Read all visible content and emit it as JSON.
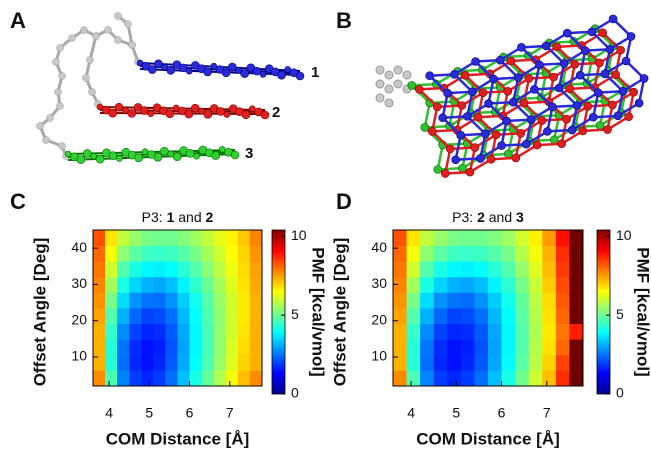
{
  "panel_labels": [
    "A",
    "B",
    "C",
    "D"
  ],
  "molecule_labels": [
    "1",
    "2",
    "3"
  ],
  "chart_data": [
    {
      "type": "heatmap",
      "title": [
        "P3: ",
        "1",
        " and ",
        "2"
      ],
      "x_label": "COM Distance [Å]",
      "y_label": "Offset Angle [Deg]",
      "colorbar_label": "PMF [kcal/vmol]",
      "x": [
        3.75,
        4.05,
        4.35,
        4.65,
        4.95,
        5.25,
        5.55,
        5.85,
        6.15,
        6.45,
        6.75,
        7.05,
        7.35,
        7.65
      ],
      "y": [
        4.15,
        8.45,
        12.75,
        17.05,
        21.35,
        25.65,
        29.95,
        34.25,
        38.55,
        42.85
      ],
      "values": [
        [
          8.5,
          4.5,
          1.8,
          0.8,
          0.5,
          0.8,
          1.5,
          2.6,
          3.8,
          4.8,
          5.8,
          6.8,
          7.8,
          8.5
        ],
        [
          8,
          4,
          1.5,
          0.5,
          0.2,
          0.5,
          1.2,
          2.3,
          3.5,
          4.5,
          5.5,
          6.5,
          7.5,
          8
        ],
        [
          8,
          4,
          1.6,
          0.6,
          0.2,
          0.4,
          1.1,
          2.2,
          3.4,
          4.4,
          5.4,
          6.4,
          7.4,
          8
        ],
        [
          8,
          4.2,
          1.9,
          0.9,
          0.5,
          0.6,
          1.2,
          2.3,
          3.4,
          4.4,
          5.4,
          6.3,
          7.3,
          8
        ],
        [
          8.2,
          4.6,
          2.4,
          1.4,
          0.9,
          1,
          1.5,
          2.5,
          3.5,
          4.5,
          5.4,
          6.3,
          7.2,
          8
        ],
        [
          8.4,
          5.1,
          3,
          2,
          1.6,
          1.5,
          2,
          2.8,
          3.7,
          4.6,
          5.5,
          6.3,
          7.2,
          8
        ],
        [
          8.6,
          5.7,
          3.8,
          2.9,
          2.4,
          2.3,
          2.6,
          3.3,
          4.1,
          4.9,
          5.7,
          6.5,
          7.3,
          8.1
        ],
        [
          8.8,
          6.3,
          4.6,
          3.8,
          3.4,
          3.3,
          3.5,
          4,
          4.6,
          5.3,
          6,
          6.7,
          7.4,
          8.2
        ],
        [
          9,
          6.8,
          5.4,
          4.7,
          4.3,
          4.2,
          4.3,
          4.6,
          5.1,
          5.7,
          6.3,
          6.9,
          7.5,
          8.4
        ],
        [
          9.3,
          7.3,
          6.1,
          5.5,
          5.1,
          5,
          5,
          5.2,
          5.6,
          6.1,
          6.6,
          7.1,
          7.7,
          8.6
        ]
      ],
      "xlim": [
        3.6,
        7.8
      ],
      "ylim": [
        2,
        45
      ],
      "clim": [
        0,
        10.4
      ],
      "xticks": [
        4,
        5,
        6,
        7
      ],
      "yticks": [
        10,
        20,
        30,
        40
      ],
      "cticks": [
        0,
        5,
        10
      ]
    },
    {
      "type": "heatmap",
      "title": [
        "P3: ",
        "2",
        " and ",
        "3"
      ],
      "x_label": "COM Distance [Å]",
      "y_label": "Offset Angle [Deg]",
      "colorbar_label": "PMF [kcal/vmol]",
      "x": [
        3.75,
        4.05,
        4.35,
        4.65,
        4.95,
        5.25,
        5.55,
        5.85,
        6.15,
        6.45,
        6.75,
        7.05,
        7.35,
        7.65
      ],
      "y": [
        4.15,
        8.45,
        12.75,
        17.05,
        21.35,
        25.65,
        29.95,
        34.25,
        38.55,
        42.85
      ],
      "values": [
        [
          8.5,
          4.5,
          1.8,
          0.8,
          0.5,
          0.8,
          1.5,
          2.6,
          3.8,
          5,
          6.3,
          7.8,
          9.8,
          11.5
        ],
        [
          8,
          4,
          1.5,
          0.5,
          0.2,
          0.5,
          1.2,
          2.3,
          3.5,
          4.7,
          6,
          7.5,
          9.5,
          11.2
        ],
        [
          8,
          4,
          1.6,
          0.6,
          0.2,
          0.4,
          1.1,
          2.2,
          3.4,
          4.6,
          5.9,
          7.3,
          9,
          10.5
        ],
        [
          8,
          4.2,
          1.9,
          0.9,
          0.5,
          0.6,
          1.2,
          2.3,
          3.4,
          4.6,
          5.8,
          7.2,
          8.8,
          10
        ],
        [
          8.2,
          4.6,
          2.4,
          1.4,
          0.9,
          1,
          1.5,
          2.5,
          3.5,
          4.7,
          5.9,
          7.3,
          9,
          10.8
        ],
        [
          8.4,
          5.1,
          3,
          2,
          1.6,
          1.5,
          2,
          2.8,
          3.7,
          4.8,
          6,
          7.4,
          9.2,
          11
        ],
        [
          8.6,
          5.7,
          3.8,
          2.9,
          2.4,
          2.3,
          2.6,
          3.3,
          4.1,
          5.1,
          6.2,
          7.6,
          9.4,
          10.6
        ],
        [
          8.8,
          6.3,
          4.6,
          3.8,
          3.4,
          3.3,
          3.5,
          4,
          4.6,
          5.5,
          6.5,
          7.8,
          9.6,
          11.3
        ],
        [
          9,
          6.8,
          5.4,
          4.7,
          4.3,
          4.2,
          4.3,
          4.6,
          5.1,
          5.9,
          6.8,
          8,
          9.8,
          11.5
        ],
        [
          9.3,
          7.3,
          6.1,
          5.5,
          5.1,
          5,
          5,
          5.2,
          5.6,
          6.3,
          7.1,
          8.3,
          10.2,
          11.8
        ]
      ],
      "xlim": [
        3.6,
        7.8
      ],
      "ylim": [
        2,
        45
      ],
      "clim": [
        0,
        10.4
      ],
      "xticks": [
        4,
        5,
        6,
        7
      ],
      "yticks": [
        10,
        20,
        30,
        40
      ],
      "cticks": [
        0,
        5,
        10
      ]
    }
  ]
}
